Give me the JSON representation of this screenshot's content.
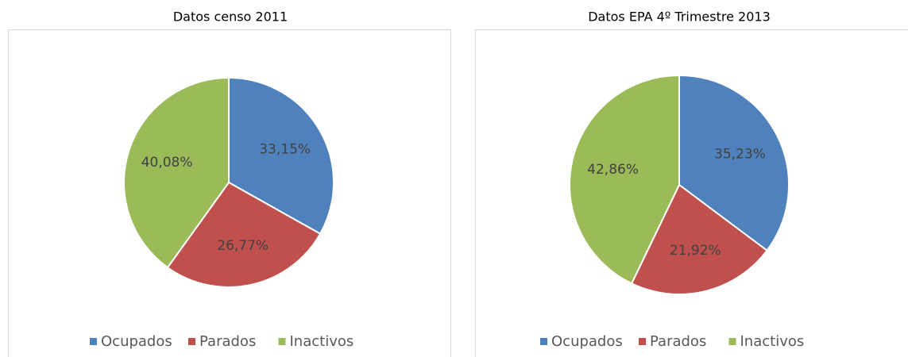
{
  "chart_data": [
    {
      "type": "pie",
      "title": "Datos censo 2011",
      "categories": [
        "Ocupados",
        "Parados",
        "Inactivos"
      ],
      "values": [
        33.15,
        26.77,
        40.08
      ],
      "value_labels": [
        "33,15%",
        "26,77%",
        "40,08%"
      ],
      "colors": [
        "#4f81bd",
        "#c0504d",
        "#9bbb59"
      ],
      "legend": "bottom"
    },
    {
      "type": "pie",
      "title": "Datos EPA 4º Trimestre 2013",
      "categories": [
        "Ocupados",
        "Parados",
        "Inactivos"
      ],
      "values": [
        35.23,
        21.92,
        42.86
      ],
      "value_labels": [
        "35,23%",
        "21,92%",
        "42,86%"
      ],
      "colors": [
        "#4f81bd",
        "#c0504d",
        "#9bbb59"
      ],
      "legend": "bottom"
    }
  ]
}
